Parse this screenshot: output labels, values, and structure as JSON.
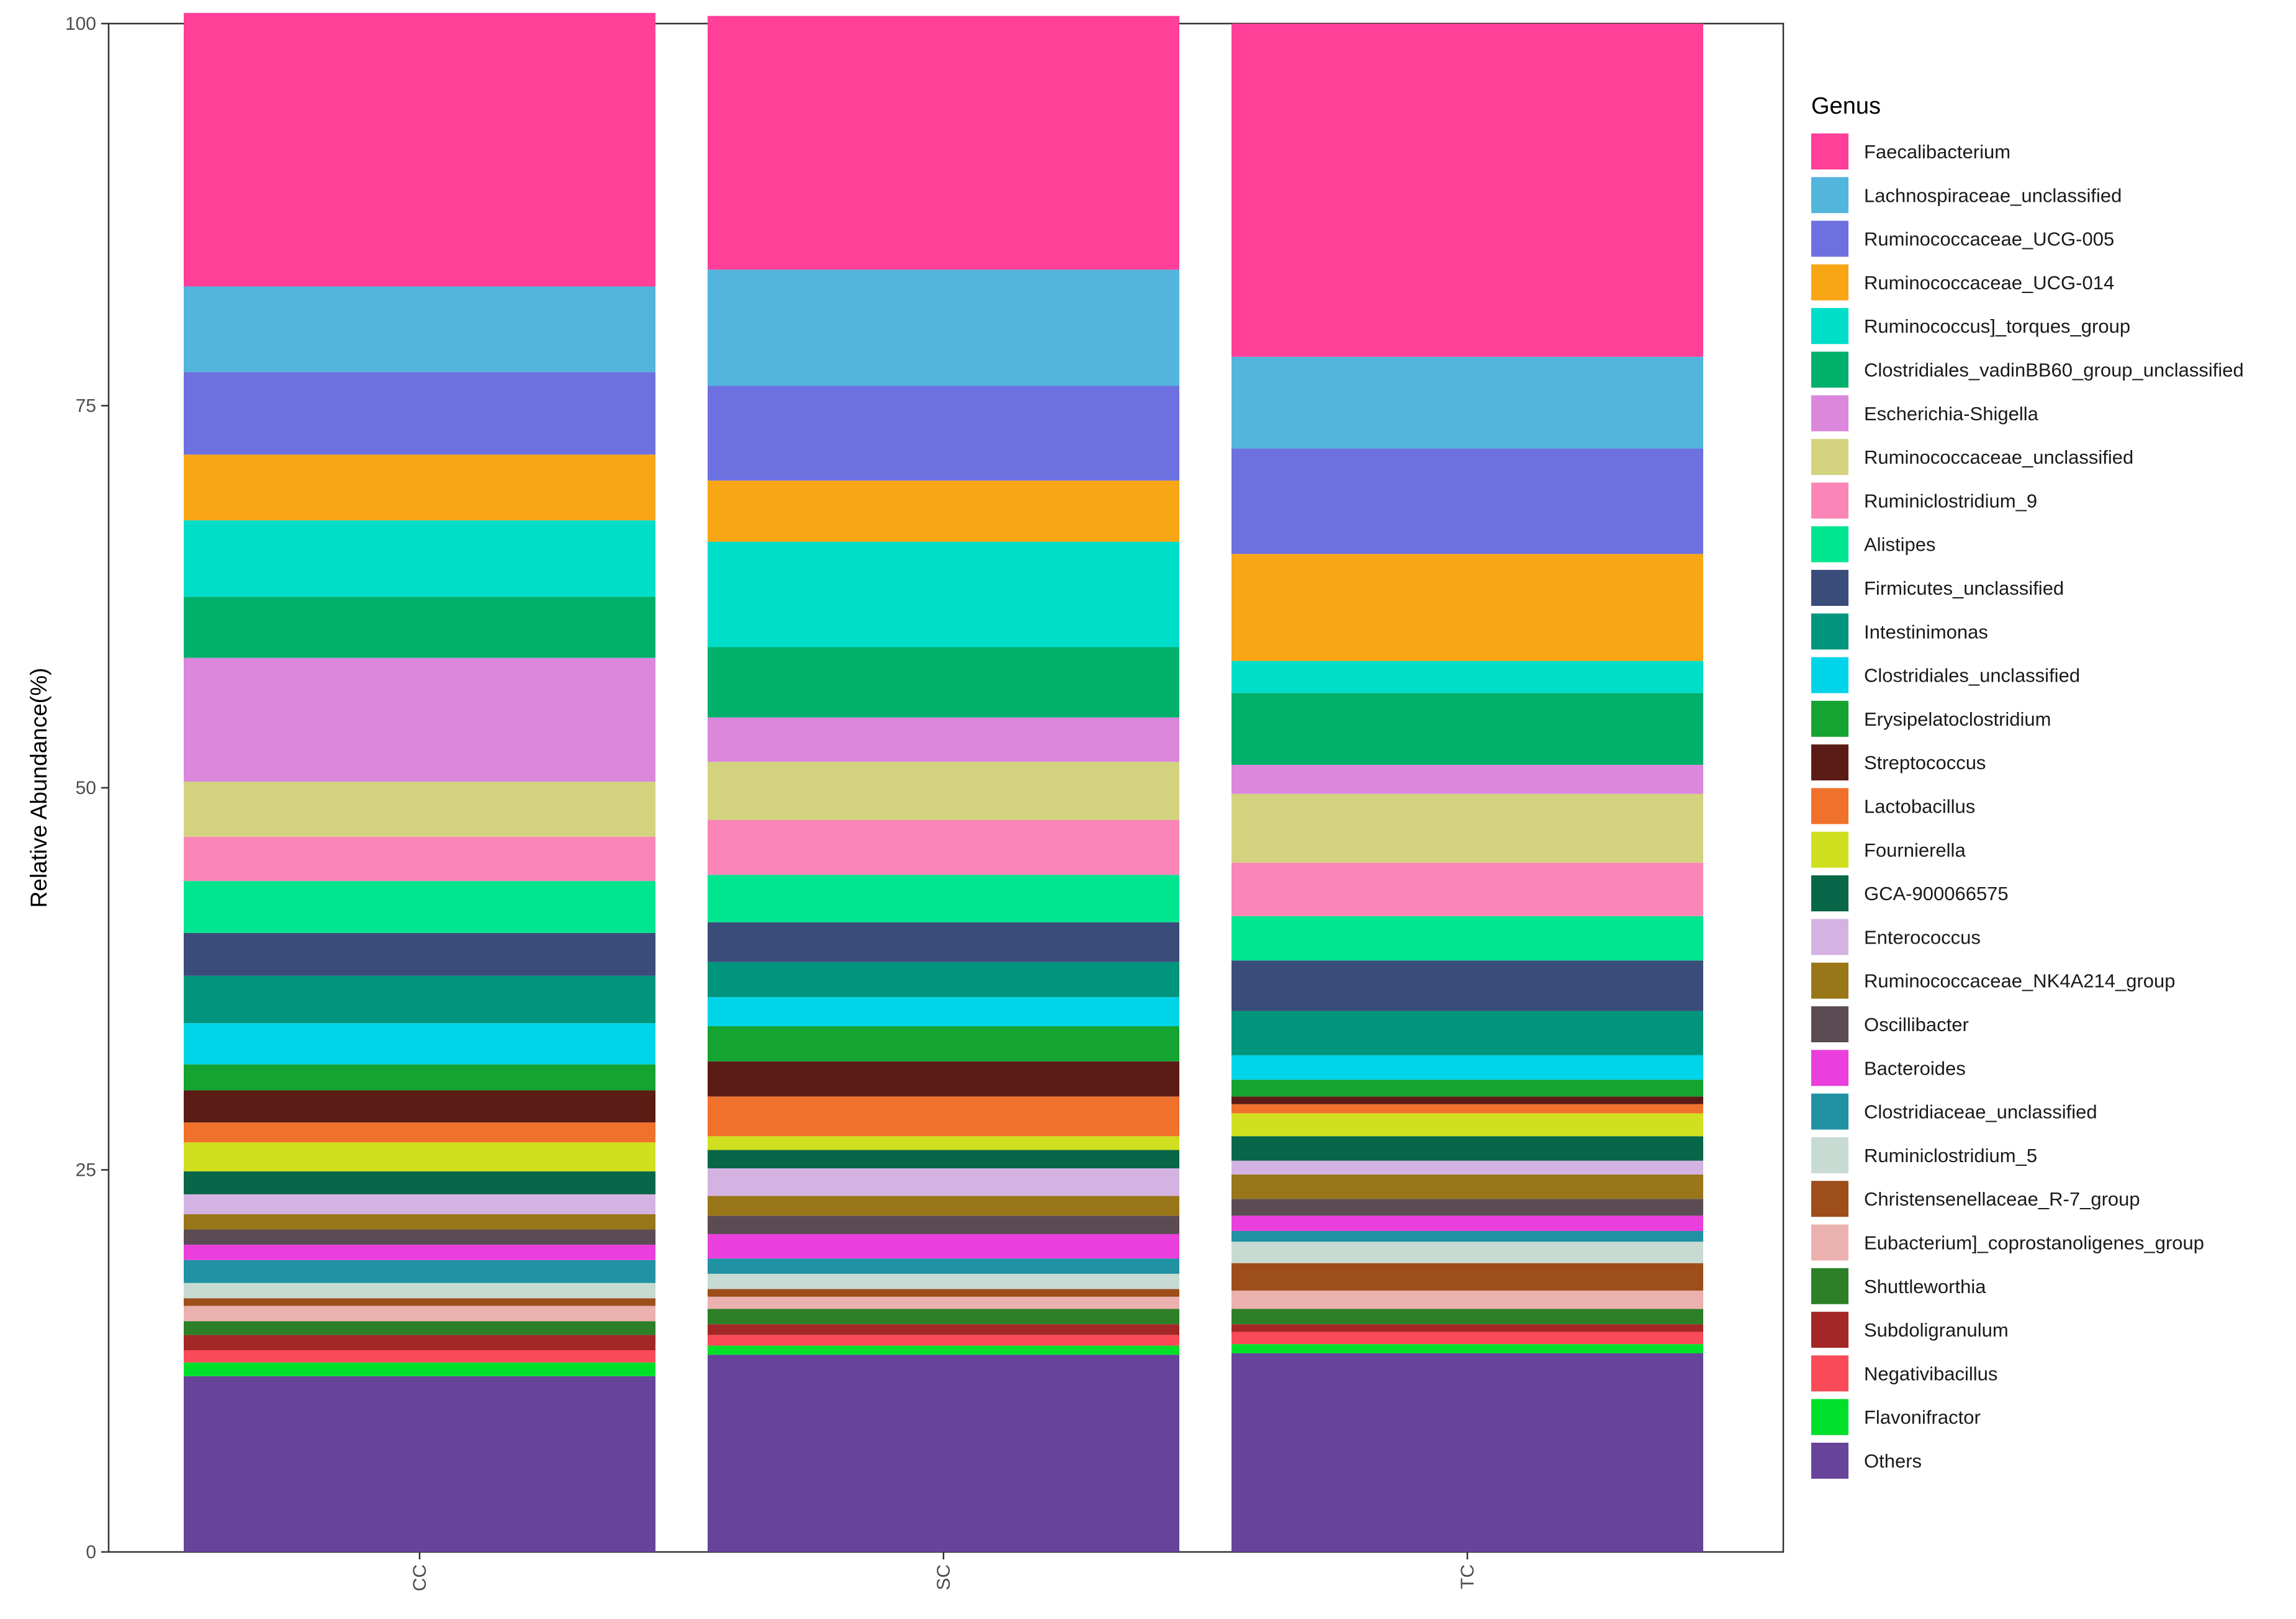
{
  "chart_data": {
    "type": "bar",
    "stacked": true,
    "ylabel": "Relative Abundance(%)",
    "xlabel": "",
    "ylim": [
      0,
      100
    ],
    "yticks": [
      "0",
      "25",
      "50",
      "75",
      "100"
    ],
    "categories": [
      "CC",
      "SC",
      "TC"
    ],
    "legend_title": "Genus",
    "legend_position": "right",
    "grid": false,
    "series": [
      {
        "name": "Others",
        "color": "#674499",
        "values": [
          11.5,
          12.9,
          13.0
        ]
      },
      {
        "name": "Flavonifractor",
        "color": "#00e02a",
        "values": [
          0.9,
          0.6,
          0.6
        ]
      },
      {
        "name": "Negativibacillus",
        "color": "#f94b57",
        "values": [
          0.8,
          0.7,
          0.8
        ]
      },
      {
        "name": "Subdoligranulum",
        "color": "#a32726",
        "values": [
          1.0,
          0.7,
          0.5
        ]
      },
      {
        "name": "Shuttleworthia",
        "color": "#2d7f28",
        "values": [
          0.9,
          1.0,
          1.0
        ]
      },
      {
        "name": "Eubacterium]_coprostanoligenes_group",
        "color": "#eab1ae",
        "values": [
          1.0,
          0.8,
          1.2
        ]
      },
      {
        "name": "Christensenellaceae_R-7_group",
        "color": "#9d4e1b",
        "values": [
          0.5,
          0.5,
          1.8
        ]
      },
      {
        "name": "Ruminiclostridium_5",
        "color": "#c7dbd2",
        "values": [
          1.0,
          1.0,
          1.4
        ]
      },
      {
        "name": "Clostridiaceae_unclassified",
        "color": "#2092a4",
        "values": [
          1.5,
          1.0,
          0.7
        ]
      },
      {
        "name": "Bacteroides",
        "color": "#ea3fdc",
        "values": [
          1.0,
          1.6,
          1.0
        ]
      },
      {
        "name": "Oscillibacter",
        "color": "#5b4c54",
        "values": [
          1.0,
          1.2,
          1.1
        ]
      },
      {
        "name": "Ruminococcaceae_NK4A214_group",
        "color": "#997719",
        "values": [
          1.0,
          1.3,
          1.6
        ]
      },
      {
        "name": "Enterococcus",
        "color": "#d4b3e3",
        "values": [
          1.3,
          1.8,
          0.9
        ]
      },
      {
        "name": "GCA-900066575",
        "color": "#086649",
        "values": [
          1.5,
          1.2,
          1.6
        ]
      },
      {
        "name": "Fournierella",
        "color": "#d0e020",
        "values": [
          1.9,
          0.9,
          1.5
        ]
      },
      {
        "name": "Lactobacillus",
        "color": "#f0712b",
        "values": [
          1.3,
          2.6,
          0.6
        ]
      },
      {
        "name": "Streptococcus",
        "color": "#5b1c15",
        "values": [
          2.1,
          2.3,
          0.5
        ]
      },
      {
        "name": "Erysipelatoclostridium",
        "color": "#15a331",
        "values": [
          1.7,
          2.3,
          1.1
        ]
      },
      {
        "name": "Clostridiales_unclassified",
        "color": "#00d4e8",
        "values": [
          2.7,
          1.9,
          1.6
        ]
      },
      {
        "name": "Intestinimonas",
        "color": "#00957c",
        "values": [
          3.1,
          2.3,
          2.9
        ]
      },
      {
        "name": "Firmicutes_unclassified",
        "color": "#3a4c7a",
        "values": [
          2.8,
          2.6,
          3.3
        ]
      },
      {
        "name": "Alistipes",
        "color": "#00e58f",
        "values": [
          3.4,
          3.1,
          2.9
        ]
      },
      {
        "name": "Ruminiclostridium_9",
        "color": "#fa86b7",
        "values": [
          2.9,
          3.6,
          3.5
        ]
      },
      {
        "name": "Ruminococcaceae_unclassified",
        "color": "#d3d37f",
        "values": [
          3.6,
          3.8,
          4.5
        ]
      },
      {
        "name": "Escherichia-Shigella",
        "color": "#db87dc",
        "values": [
          8.1,
          2.9,
          1.9
        ]
      },
      {
        "name": "Clostridiales_vadinBB60_group_unclassified",
        "color": "#00b06b",
        "values": [
          4.0,
          4.6,
          4.7
        ]
      },
      {
        "name": "Ruminococcus]_torques_group",
        "color": "#00ddc9",
        "values": [
          5.0,
          6.9,
          2.1
        ]
      },
      {
        "name": "Ruminococcaceae_UCG-014",
        "color": "#f8a616",
        "values": [
          4.3,
          4.0,
          7.0
        ]
      },
      {
        "name": "Ruminococcaceae_UCG-005",
        "color": "#6d71e0",
        "values": [
          5.4,
          6.2,
          6.9
        ]
      },
      {
        "name": "Lachnospiraceae_unclassified",
        "color": "#52b5dc",
        "values": [
          5.6,
          7.6,
          6.0
        ]
      },
      {
        "name": "Faecalibacterium",
        "color": "#ff3f98",
        "values": [
          17.9,
          16.6,
          21.8
        ]
      }
    ]
  }
}
